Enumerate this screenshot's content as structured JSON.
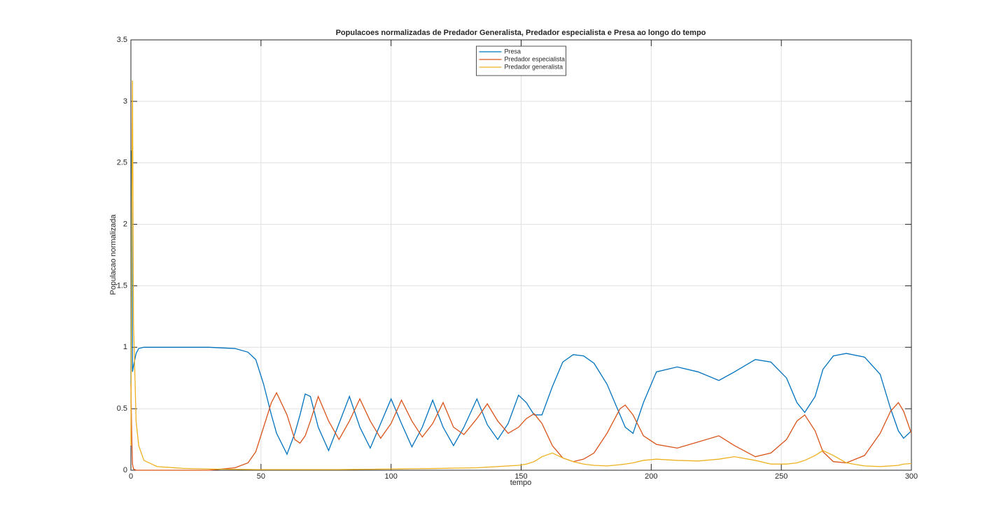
{
  "chart_data": {
    "type": "line",
    "title": "Populacoes normalizadas de Predador Generalista, Predador especialista e Presa ao longo do tempo",
    "xlabel": "tempo",
    "ylabel": "Populacao normalizada",
    "x": [
      0,
      0.3,
      0.6,
      1,
      2,
      3,
      5,
      10,
      20,
      30,
      40,
      45,
      48,
      51,
      54,
      56,
      60,
      63,
      65,
      67,
      69,
      72,
      76,
      80,
      84,
      88,
      92,
      96,
      100,
      104,
      108,
      112,
      116,
      120,
      124,
      128,
      133,
      137,
      141,
      145,
      149,
      152,
      155,
      158,
      162,
      166,
      170,
      174,
      178,
      183,
      188,
      190,
      193,
      197,
      202,
      210,
      218,
      226,
      232,
      240,
      246,
      252,
      256,
      259,
      263,
      266,
      270,
      275,
      282,
      288,
      292,
      295,
      297,
      300
    ],
    "series": [
      {
        "name": "Presa",
        "color": "#0072bd",
        "values": [
          0.7,
          2.6,
          0.8,
          0.85,
          0.95,
          0.99,
          1.0,
          1.0,
          1.0,
          1.0,
          0.99,
          0.96,
          0.9,
          0.7,
          0.45,
          0.3,
          0.13,
          0.3,
          0.45,
          0.62,
          0.6,
          0.35,
          0.16,
          0.38,
          0.6,
          0.35,
          0.18,
          0.38,
          0.58,
          0.38,
          0.19,
          0.35,
          0.57,
          0.35,
          0.2,
          0.35,
          0.58,
          0.37,
          0.25,
          0.38,
          0.61,
          0.55,
          0.45,
          0.45,
          0.68,
          0.88,
          0.94,
          0.93,
          0.87,
          0.7,
          0.45,
          0.35,
          0.3,
          0.55,
          0.8,
          0.84,
          0.8,
          0.73,
          0.8,
          0.9,
          0.88,
          0.75,
          0.55,
          0.47,
          0.6,
          0.82,
          0.93,
          0.95,
          0.92,
          0.78,
          0.5,
          0.32,
          0.26,
          0.32
        ]
      },
      {
        "name": "Predador especialista",
        "color": "#d95319",
        "values": [
          0.7,
          0.3,
          0.05,
          0.01,
          0,
          0,
          0,
          0,
          0,
          0,
          0.02,
          0.06,
          0.15,
          0.35,
          0.55,
          0.63,
          0.45,
          0.25,
          0.22,
          0.28,
          0.4,
          0.6,
          0.4,
          0.25,
          0.4,
          0.58,
          0.4,
          0.26,
          0.38,
          0.57,
          0.4,
          0.27,
          0.38,
          0.55,
          0.35,
          0.29,
          0.42,
          0.54,
          0.4,
          0.3,
          0.35,
          0.42,
          0.46,
          0.38,
          0.2,
          0.1,
          0.07,
          0.09,
          0.14,
          0.3,
          0.5,
          0.53,
          0.45,
          0.28,
          0.21,
          0.18,
          0.23,
          0.28,
          0.2,
          0.11,
          0.14,
          0.25,
          0.4,
          0.45,
          0.32,
          0.15,
          0.07,
          0.06,
          0.12,
          0.3,
          0.48,
          0.55,
          0.48,
          0.3
        ]
      },
      {
        "name": "Predador generalista",
        "color": "#edb120",
        "values": [
          0.2,
          2.0,
          3.17,
          1.2,
          0.4,
          0.2,
          0.08,
          0.03,
          0.015,
          0.01,
          0.007,
          0.006,
          0.005,
          0.005,
          0.005,
          0.005,
          0.005,
          0.005,
          0.005,
          0.005,
          0.005,
          0.005,
          0.005,
          0.005,
          0.006,
          0.007,
          0.008,
          0.009,
          0.01,
          0.011,
          0.012,
          0.013,
          0.014,
          0.015,
          0.017,
          0.018,
          0.02,
          0.025,
          0.03,
          0.035,
          0.04,
          0.05,
          0.07,
          0.11,
          0.14,
          0.1,
          0.07,
          0.05,
          0.04,
          0.035,
          0.045,
          0.05,
          0.06,
          0.08,
          0.09,
          0.08,
          0.075,
          0.09,
          0.11,
          0.08,
          0.05,
          0.05,
          0.06,
          0.08,
          0.12,
          0.16,
          0.12,
          0.06,
          0.035,
          0.03,
          0.035,
          0.04,
          0.05,
          0.055
        ]
      }
    ],
    "xlim": [
      0,
      300
    ],
    "ylim": [
      0,
      3.5
    ],
    "xticks": [
      0,
      50,
      100,
      150,
      200,
      250,
      300
    ],
    "yticks": [
      0,
      0.5,
      1,
      1.5,
      2,
      2.5,
      3,
      3.5
    ],
    "grid": true,
    "legend": "north"
  }
}
